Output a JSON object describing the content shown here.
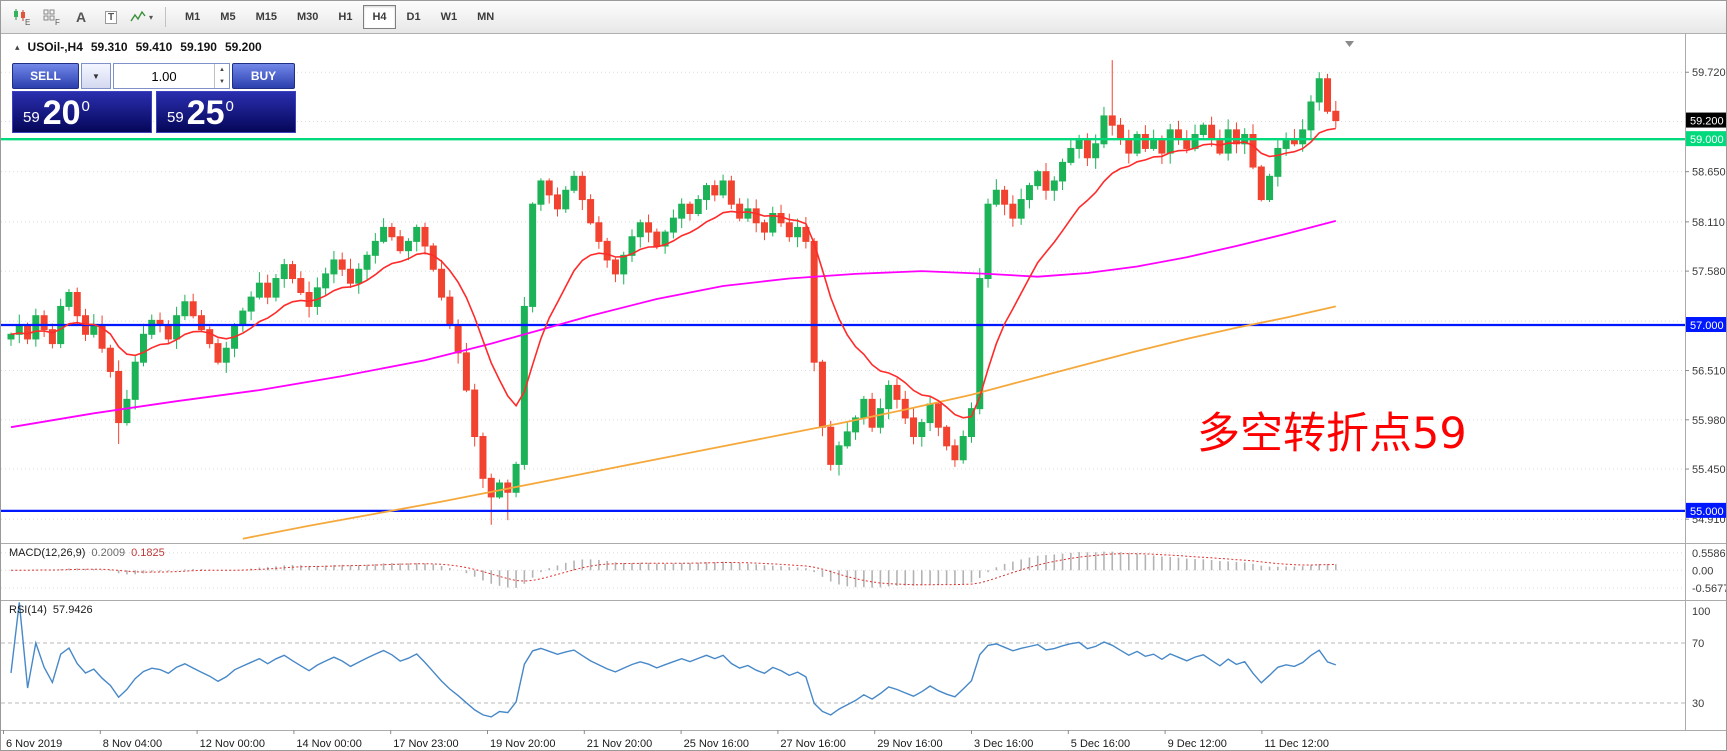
{
  "toolbar": {
    "icons": [
      {
        "name": "new-order-icon",
        "glyph": "E"
      },
      {
        "name": "grid-icon",
        "glyph": "F"
      },
      {
        "name": "text-tool-icon",
        "glyph": "A"
      },
      {
        "name": "label-tool-icon",
        "glyph": "T"
      },
      {
        "name": "indicators-icon",
        "glyph": "▾"
      }
    ],
    "timeframes": [
      "M1",
      "M5",
      "M15",
      "M30",
      "H1",
      "H4",
      "D1",
      "W1",
      "MN"
    ],
    "active_timeframe": "H4"
  },
  "chart_header": {
    "collapse_glyph": "▴",
    "symbol": "USOil-,H4",
    "open": "59.310",
    "high": "59.410",
    "low": "59.190",
    "close": "59.200"
  },
  "trade_panel": {
    "sell_label": "SELL",
    "buy_label": "BUY",
    "volume": "1.00",
    "dropdown_glyph": "▼",
    "spin_up_glyph": "▲",
    "spin_down_glyph": "▼",
    "sell_price_prefix": "59",
    "sell_price_main": "20",
    "sell_price_sup": "0",
    "buy_price_prefix": "59",
    "buy_price_main": "25",
    "buy_price_sup": "0"
  },
  "annotation": {
    "text": "多空转折点59",
    "color": "#ff0000"
  },
  "chart_data": {
    "type": "candlestick",
    "symbol": "USOil- H4",
    "up_color": "#1cb257",
    "down_color": "#f14330",
    "price_axis_ticks": [
      "59.720",
      "58.650",
      "58.110",
      "57.580",
      "56.510",
      "55.980",
      "55.450",
      "54.910"
    ],
    "grid_levels": [
      59.72,
      59.19,
      58.65,
      58.11,
      57.58,
      57.04,
      56.51,
      55.98,
      55.45,
      54.91
    ],
    "current_price": 59.2,
    "current_price_label": "59.200",
    "hlines": [
      {
        "name": "hline-59000",
        "price": 59.0,
        "label": "59.000",
        "color": "#00d97c",
        "width": 2.4
      },
      {
        "name": "hline-57000",
        "price": 57.0,
        "label": "57.000",
        "color": "#0018ff",
        "width": 2.2
      },
      {
        "name": "hline-55000",
        "price": 55.0,
        "label": "55.000",
        "color": "#0018ff",
        "width": 2.2
      }
    ],
    "candles": {
      "first_open": 56.85,
      "closes": [
        56.9,
        57.0,
        56.85,
        57.1,
        56.95,
        56.8,
        57.2,
        57.35,
        57.1,
        56.9,
        57.0,
        56.75,
        56.5,
        55.95,
        56.2,
        56.6,
        56.9,
        57.05,
        57.0,
        56.85,
        57.1,
        57.25,
        57.1,
        56.95,
        56.8,
        56.6,
        56.75,
        57.0,
        57.15,
        57.3,
        57.45,
        57.3,
        57.5,
        57.65,
        57.5,
        57.35,
        57.2,
        57.4,
        57.55,
        57.7,
        57.6,
        57.45,
        57.6,
        57.75,
        57.9,
        58.05,
        57.95,
        57.8,
        57.9,
        58.05,
        57.85,
        57.6,
        57.3,
        57.0,
        56.7,
        56.3,
        55.8,
        55.35,
        55.15,
        55.3,
        55.2,
        55.5,
        57.2,
        58.3,
        58.55,
        58.4,
        58.25,
        58.45,
        58.6,
        58.35,
        58.1,
        57.9,
        57.7,
        57.55,
        57.75,
        57.95,
        58.1,
        58.0,
        57.85,
        58.0,
        58.15,
        58.3,
        58.2,
        58.35,
        58.5,
        58.4,
        58.55,
        58.3,
        58.15,
        58.25,
        58.1,
        58.0,
        58.2,
        58.1,
        57.95,
        58.05,
        57.9,
        56.6,
        55.9,
        55.5,
        55.7,
        55.85,
        56.0,
        56.2,
        55.9,
        56.1,
        56.35,
        56.2,
        56.0,
        55.8,
        55.95,
        56.15,
        55.9,
        55.7,
        55.55,
        55.8,
        56.1,
        57.5,
        58.3,
        58.45,
        58.3,
        58.15,
        58.35,
        58.5,
        58.65,
        58.45,
        58.55,
        58.75,
        58.9,
        59.0,
        58.8,
        58.95,
        59.25,
        59.15,
        59.0,
        58.85,
        59.05,
        58.9,
        59.0,
        58.85,
        59.1,
        59.0,
        58.9,
        59.05,
        59.15,
        59.0,
        58.85,
        59.1,
        58.95,
        59.05,
        58.7,
        58.35,
        58.6,
        58.9,
        59.0,
        58.95,
        59.1,
        59.4,
        59.65,
        59.3,
        59.2
      ],
      "wick_overrides": {
        "13": {
          "low": 55.72
        },
        "58": {
          "low": 54.85
        },
        "60": {
          "low": 54.9
        },
        "133": {
          "high": 59.85
        },
        "158": {
          "high": 59.72
        }
      }
    },
    "ma": {
      "fast": {
        "color": "#ff2a2a",
        "period": 13
      },
      "mid": {
        "color": "#ff00ff",
        "points": [
          [
            0,
            55.9
          ],
          [
            10,
            56.05
          ],
          [
            20,
            56.18
          ],
          [
            30,
            56.3
          ],
          [
            40,
            56.45
          ],
          [
            50,
            56.62
          ],
          [
            58,
            56.8
          ],
          [
            64,
            56.95
          ],
          [
            70,
            57.1
          ],
          [
            78,
            57.28
          ],
          [
            86,
            57.42
          ],
          [
            94,
            57.5
          ],
          [
            102,
            57.55
          ],
          [
            110,
            57.58
          ],
          [
            118,
            57.55
          ],
          [
            124,
            57.52
          ],
          [
            130,
            57.56
          ],
          [
            136,
            57.63
          ],
          [
            142,
            57.73
          ],
          [
            148,
            57.85
          ],
          [
            154,
            57.98
          ],
          [
            160,
            58.12
          ]
        ]
      },
      "slow": {
        "color": "#f5a93c",
        "points": [
          [
            28,
            54.7
          ],
          [
            36,
            54.84
          ],
          [
            44,
            54.97
          ],
          [
            52,
            55.1
          ],
          [
            60,
            55.24
          ],
          [
            68,
            55.38
          ],
          [
            76,
            55.52
          ],
          [
            84,
            55.66
          ],
          [
            92,
            55.8
          ],
          [
            100,
            55.94
          ],
          [
            108,
            56.09
          ],
          [
            116,
            56.25
          ],
          [
            124,
            56.44
          ],
          [
            130,
            56.58
          ],
          [
            136,
            56.72
          ],
          [
            142,
            56.85
          ],
          [
            148,
            56.97
          ],
          [
            154,
            57.08
          ],
          [
            160,
            57.2
          ]
        ]
      }
    },
    "macd": {
      "title": "MACD(12,26,9)",
      "value_main": "0.2009",
      "value_signal": "0.1825",
      "axis": [
        "0.5586",
        "0.00",
        "-0.5677"
      ],
      "axis_values": [
        0.5586,
        0,
        -0.5677
      ],
      "fast": 12,
      "slow": 26,
      "signal": 9,
      "hist_color": "#b3b3b3",
      "signal_color": "#e03030"
    },
    "rsi": {
      "title": "RSI(14)",
      "value": "57.9426",
      "axis": [
        "100",
        "70",
        "30"
      ],
      "period": 14,
      "levels": [
        70,
        30
      ],
      "color": "#4788c8"
    },
    "time_labels": [
      "6 Nov 2019",
      "8 Nov 04:00",
      "12 Nov 00:00",
      "14 Nov 00:00",
      "17 Nov 23:00",
      "19 Nov 20:00",
      "21 Nov 20:00",
      "25 Nov 16:00",
      "27 Nov 16:00",
      "29 Nov 16:00",
      "3 Dec 16:00",
      "5 Dec 16:00",
      "9 Dec 12:00",
      "11 Dec 12:00"
    ]
  }
}
